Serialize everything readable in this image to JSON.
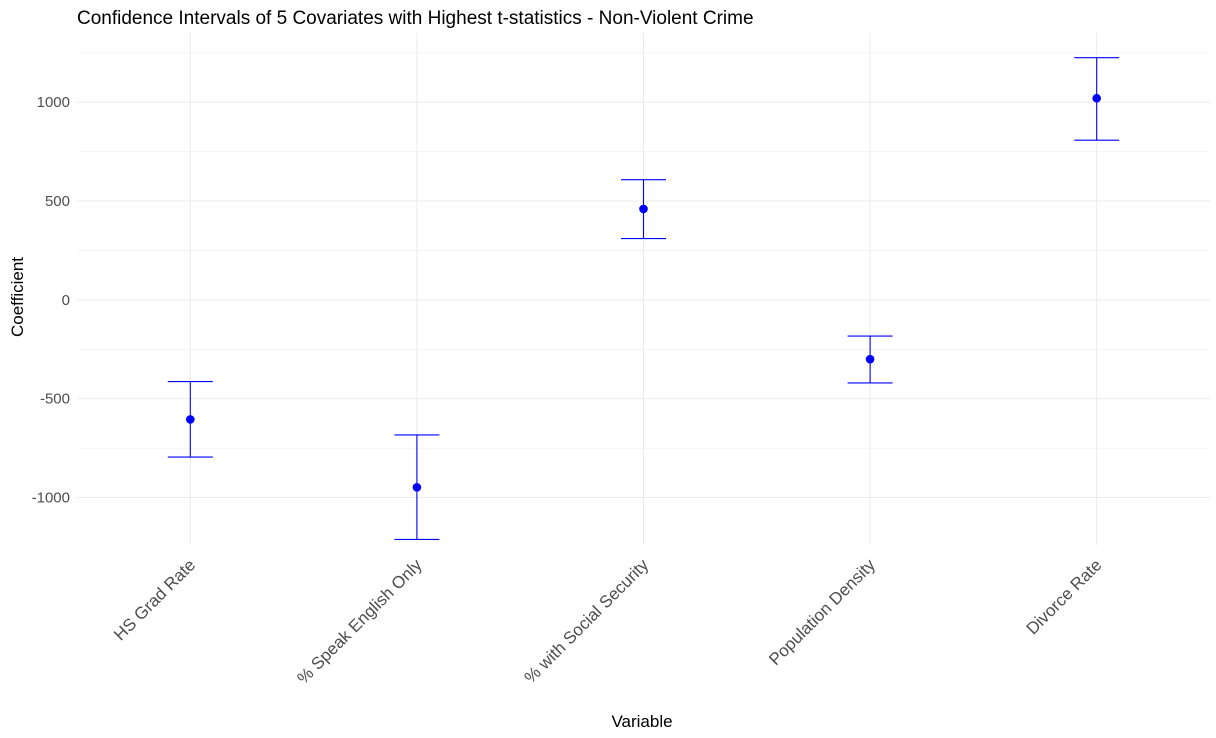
{
  "chart_data": {
    "type": "errorbar",
    "title": "Confidence Intervals of 5 Covariates with Highest t-statistics - Non-Violent Crime",
    "xlabel": "Variable",
    "ylabel": "Coefficient",
    "categories": [
      "HS Grad Rate",
      "% Speak English Only",
      "% with Social Security",
      "Population Density",
      "Divorce Rate"
    ],
    "estimates": [
      -605,
      -948,
      460,
      -300,
      1020
    ],
    "lower": [
      -795,
      -1212,
      310,
      -420,
      808
    ],
    "upper": [
      -413,
      -683,
      608,
      -183,
      1225
    ],
    "ylim": [
      -1240,
      1350
    ],
    "yticks": [
      -1000,
      -500,
      0,
      500,
      1000
    ],
    "ytick_labels": [
      "-1000",
      "-500",
      "0",
      "500",
      "1000"
    ],
    "grid": true,
    "color": "#0000ff"
  }
}
